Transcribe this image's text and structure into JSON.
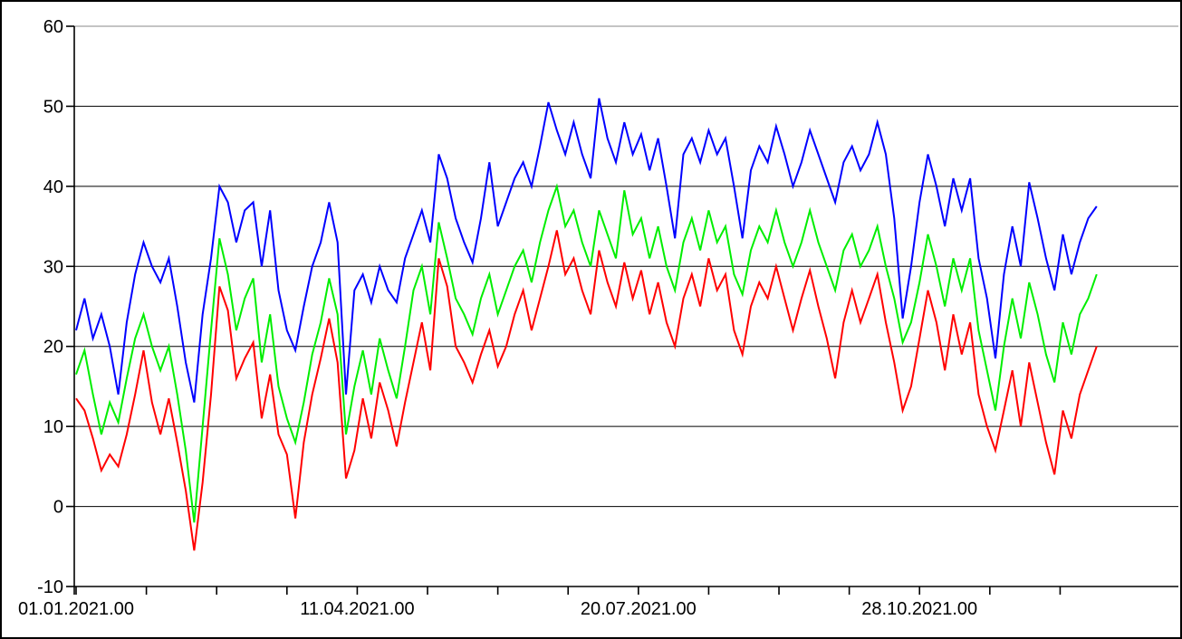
{
  "chart_data": {
    "type": "line",
    "title": "",
    "xlabel": "",
    "ylabel": "",
    "background_color": "#ffffff",
    "axis_color": "#000000",
    "gridline_color": "#000000",
    "top_gridline_color": "#888888",
    "grid": true,
    "legend": "none",
    "ylim": [
      -10,
      60
    ],
    "yticks": [
      60,
      50,
      40,
      30,
      20,
      10,
      0,
      -10
    ],
    "ytick_labels": [
      "60",
      "50",
      "40",
      "30",
      "20",
      "10",
      "0",
      "-10"
    ],
    "x_range_days": [
      0,
      365
    ],
    "minor_xtick_interval_days": 25,
    "xtick_labels": [
      "01.01.2021.00",
      "11.04.2021.00",
      "20.07.2021.00",
      "28.10.2021.00"
    ],
    "xtick_label_days": [
      0,
      100,
      200,
      300
    ],
    "sample_interval_days": 3,
    "series": [
      {
        "name": "blue",
        "color": "#0000ff",
        "values": [
          22,
          26,
          21,
          24,
          20,
          14,
          23,
          29,
          33,
          30,
          28,
          31,
          25,
          18,
          13,
          24,
          31,
          40,
          38,
          33,
          37,
          38,
          30,
          37,
          27,
          22,
          19.5,
          25,
          30,
          33,
          38,
          33,
          14,
          27,
          29,
          25.5,
          30,
          27,
          25.5,
          31,
          34,
          37,
          33,
          44,
          41,
          36,
          33,
          30.5,
          36,
          43,
          35,
          38,
          41,
          43,
          40,
          45,
          50.5,
          47,
          44,
          48,
          44,
          41,
          51,
          46,
          43,
          48,
          44,
          46.5,
          42,
          46,
          40,
          33.5,
          44,
          46,
          43,
          47,
          44,
          46,
          40,
          33.5,
          42,
          45,
          43,
          47.5,
          44,
          40,
          43,
          47,
          44,
          41,
          38,
          43,
          45,
          42,
          44,
          48,
          44,
          36,
          23.5,
          30,
          38,
          44,
          40,
          35,
          41,
          37,
          41,
          31,
          26,
          18.5,
          29,
          35,
          30,
          40.5,
          36,
          31,
          27,
          34,
          29,
          33,
          36,
          37.5
        ]
      },
      {
        "name": "green",
        "color": "#00ee00",
        "values": [
          16.5,
          19.5,
          14,
          9,
          13,
          10.5,
          16,
          21,
          24,
          20,
          17,
          20,
          14,
          7,
          -2,
          10,
          22,
          33.5,
          29,
          22,
          26,
          28.5,
          18,
          24,
          15,
          11,
          8,
          13,
          19,
          23,
          28.5,
          24,
          9,
          15,
          19.5,
          14,
          21,
          17,
          13.5,
          20,
          27,
          30,
          24,
          35.5,
          31,
          26,
          24,
          21.5,
          26,
          29,
          24,
          27,
          30,
          32,
          28,
          33,
          37,
          40,
          35,
          37,
          33,
          30,
          37,
          34,
          31,
          39.5,
          34,
          36,
          31,
          35,
          30,
          27,
          33,
          36,
          32,
          37,
          33,
          35,
          29,
          26.5,
          32,
          35,
          33,
          37,
          33,
          30,
          33,
          37,
          33,
          30,
          27,
          32,
          34,
          30,
          32,
          35,
          30,
          26,
          20.5,
          23,
          28,
          34,
          30,
          25,
          31,
          27,
          31,
          22,
          17,
          12,
          20,
          26,
          21,
          28,
          24,
          19,
          15.5,
          23,
          19,
          24,
          26,
          29
        ]
      },
      {
        "name": "red",
        "color": "#ff0000",
        "values": [
          13.5,
          12,
          8.5,
          4.5,
          6.5,
          5,
          9,
          14,
          19.5,
          13,
          9,
          13.5,
          8,
          2,
          -5.5,
          3,
          14,
          27.5,
          24.5,
          16,
          18.5,
          20.5,
          11,
          16.5,
          9,
          6.5,
          -1.5,
          8,
          14,
          18.5,
          23.5,
          18,
          3.5,
          7,
          13.5,
          8.5,
          15.5,
          12,
          7.5,
          13,
          18,
          23,
          17,
          31,
          27.5,
          20,
          18,
          15.5,
          19,
          22,
          17.5,
          20,
          24,
          27,
          22,
          26,
          30,
          34.5,
          29,
          31,
          27,
          24,
          32,
          28,
          25,
          30.5,
          26,
          29.5,
          24,
          28,
          23,
          20,
          26,
          29,
          25,
          31,
          27,
          29,
          22,
          19,
          25,
          28,
          26,
          30,
          26,
          22,
          26,
          29.5,
          25,
          21,
          16,
          23,
          27,
          23,
          26,
          29,
          23,
          18,
          12,
          15,
          21,
          27,
          23,
          17,
          24,
          19,
          23,
          14,
          10,
          7,
          12,
          17,
          10,
          18,
          13,
          8,
          4,
          12,
          8.5,
          14,
          17,
          20
        ]
      }
    ]
  }
}
